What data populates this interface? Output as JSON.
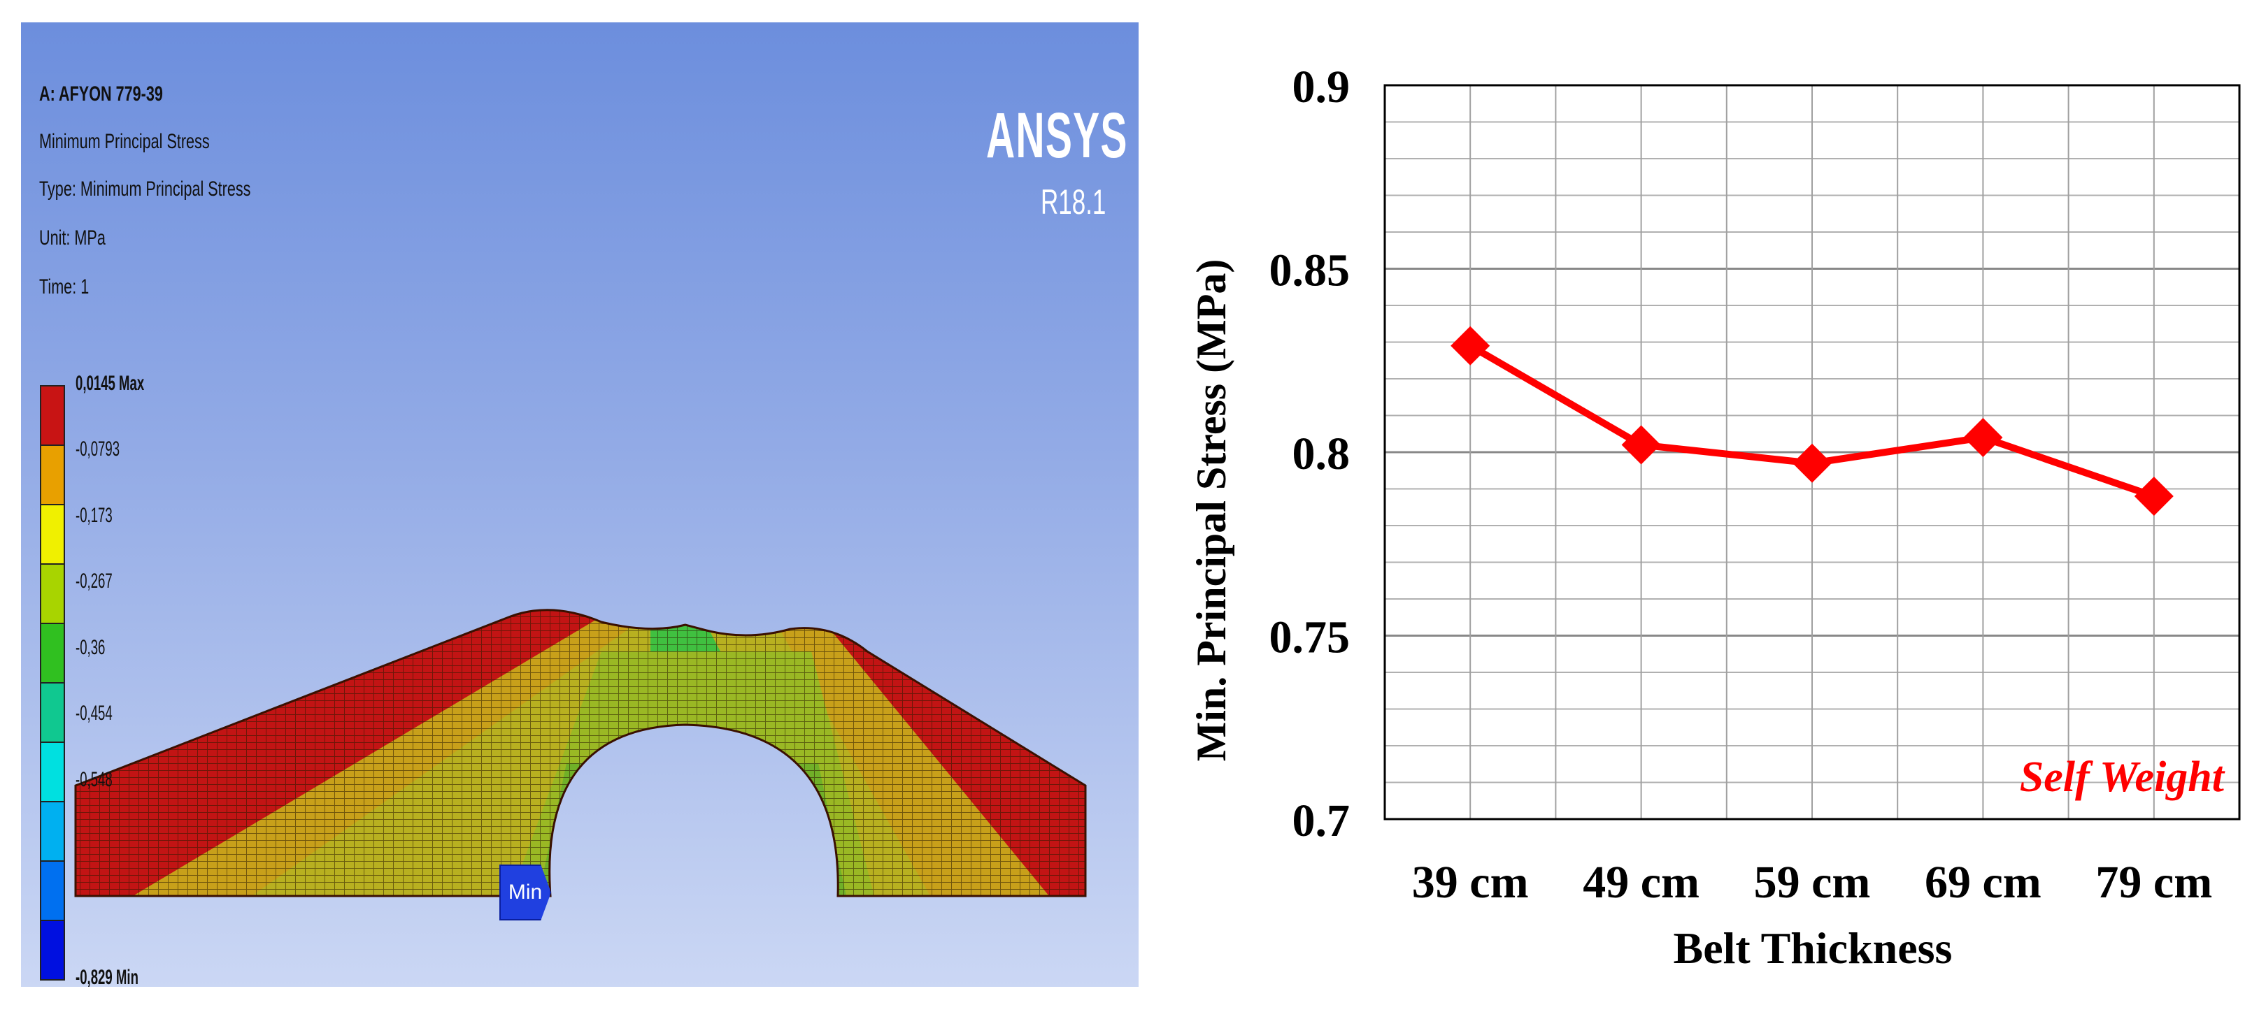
{
  "ansys": {
    "title": "A: AFYON 779-39",
    "result_name": "Minimum Principal Stress",
    "type_line": "Type: Minimum Principal Stress",
    "unit_line": "Unit: MPa",
    "time_line": "Time: 1",
    "logo": "ANSYS",
    "version": "R18.1",
    "min_tag": "Min",
    "legend": [
      {
        "label": "0,0145 Max",
        "color": "#c81414"
      },
      {
        "label": "-0,0793",
        "color": "#e8a000"
      },
      {
        "label": "-0,173",
        "color": "#f0f000"
      },
      {
        "label": "-0,267",
        "color": "#a8d400"
      },
      {
        "label": "-0,36",
        "color": "#30c020"
      },
      {
        "label": "-0,454",
        "color": "#10c890"
      },
      {
        "label": "-0,548",
        "color": "#00e0e0"
      },
      {
        "label": "",
        "color": "#00b0f0"
      },
      {
        "label": "",
        "color": "#0070f0"
      },
      {
        "label": "-0,829 Min",
        "color": "#0010e0"
      }
    ]
  },
  "chart_data": {
    "type": "line",
    "categories": [
      "39 cm",
      "49 cm",
      "59 cm",
      "69 cm",
      "79 cm"
    ],
    "series": [
      {
        "values": [
          0.829,
          0.802,
          0.797,
          0.804,
          0.788
        ],
        "color": "#ff0000"
      }
    ],
    "xlabel": "Belt Thickness",
    "ylabel": "Min. Principal Stress (MPa)",
    "ylim": [
      0.7,
      0.9
    ],
    "yticks": [
      "0.9",
      "0.85",
      "0.8",
      "0.75",
      "0.7"
    ],
    "annotation": "Self Weight",
    "grid": true
  }
}
